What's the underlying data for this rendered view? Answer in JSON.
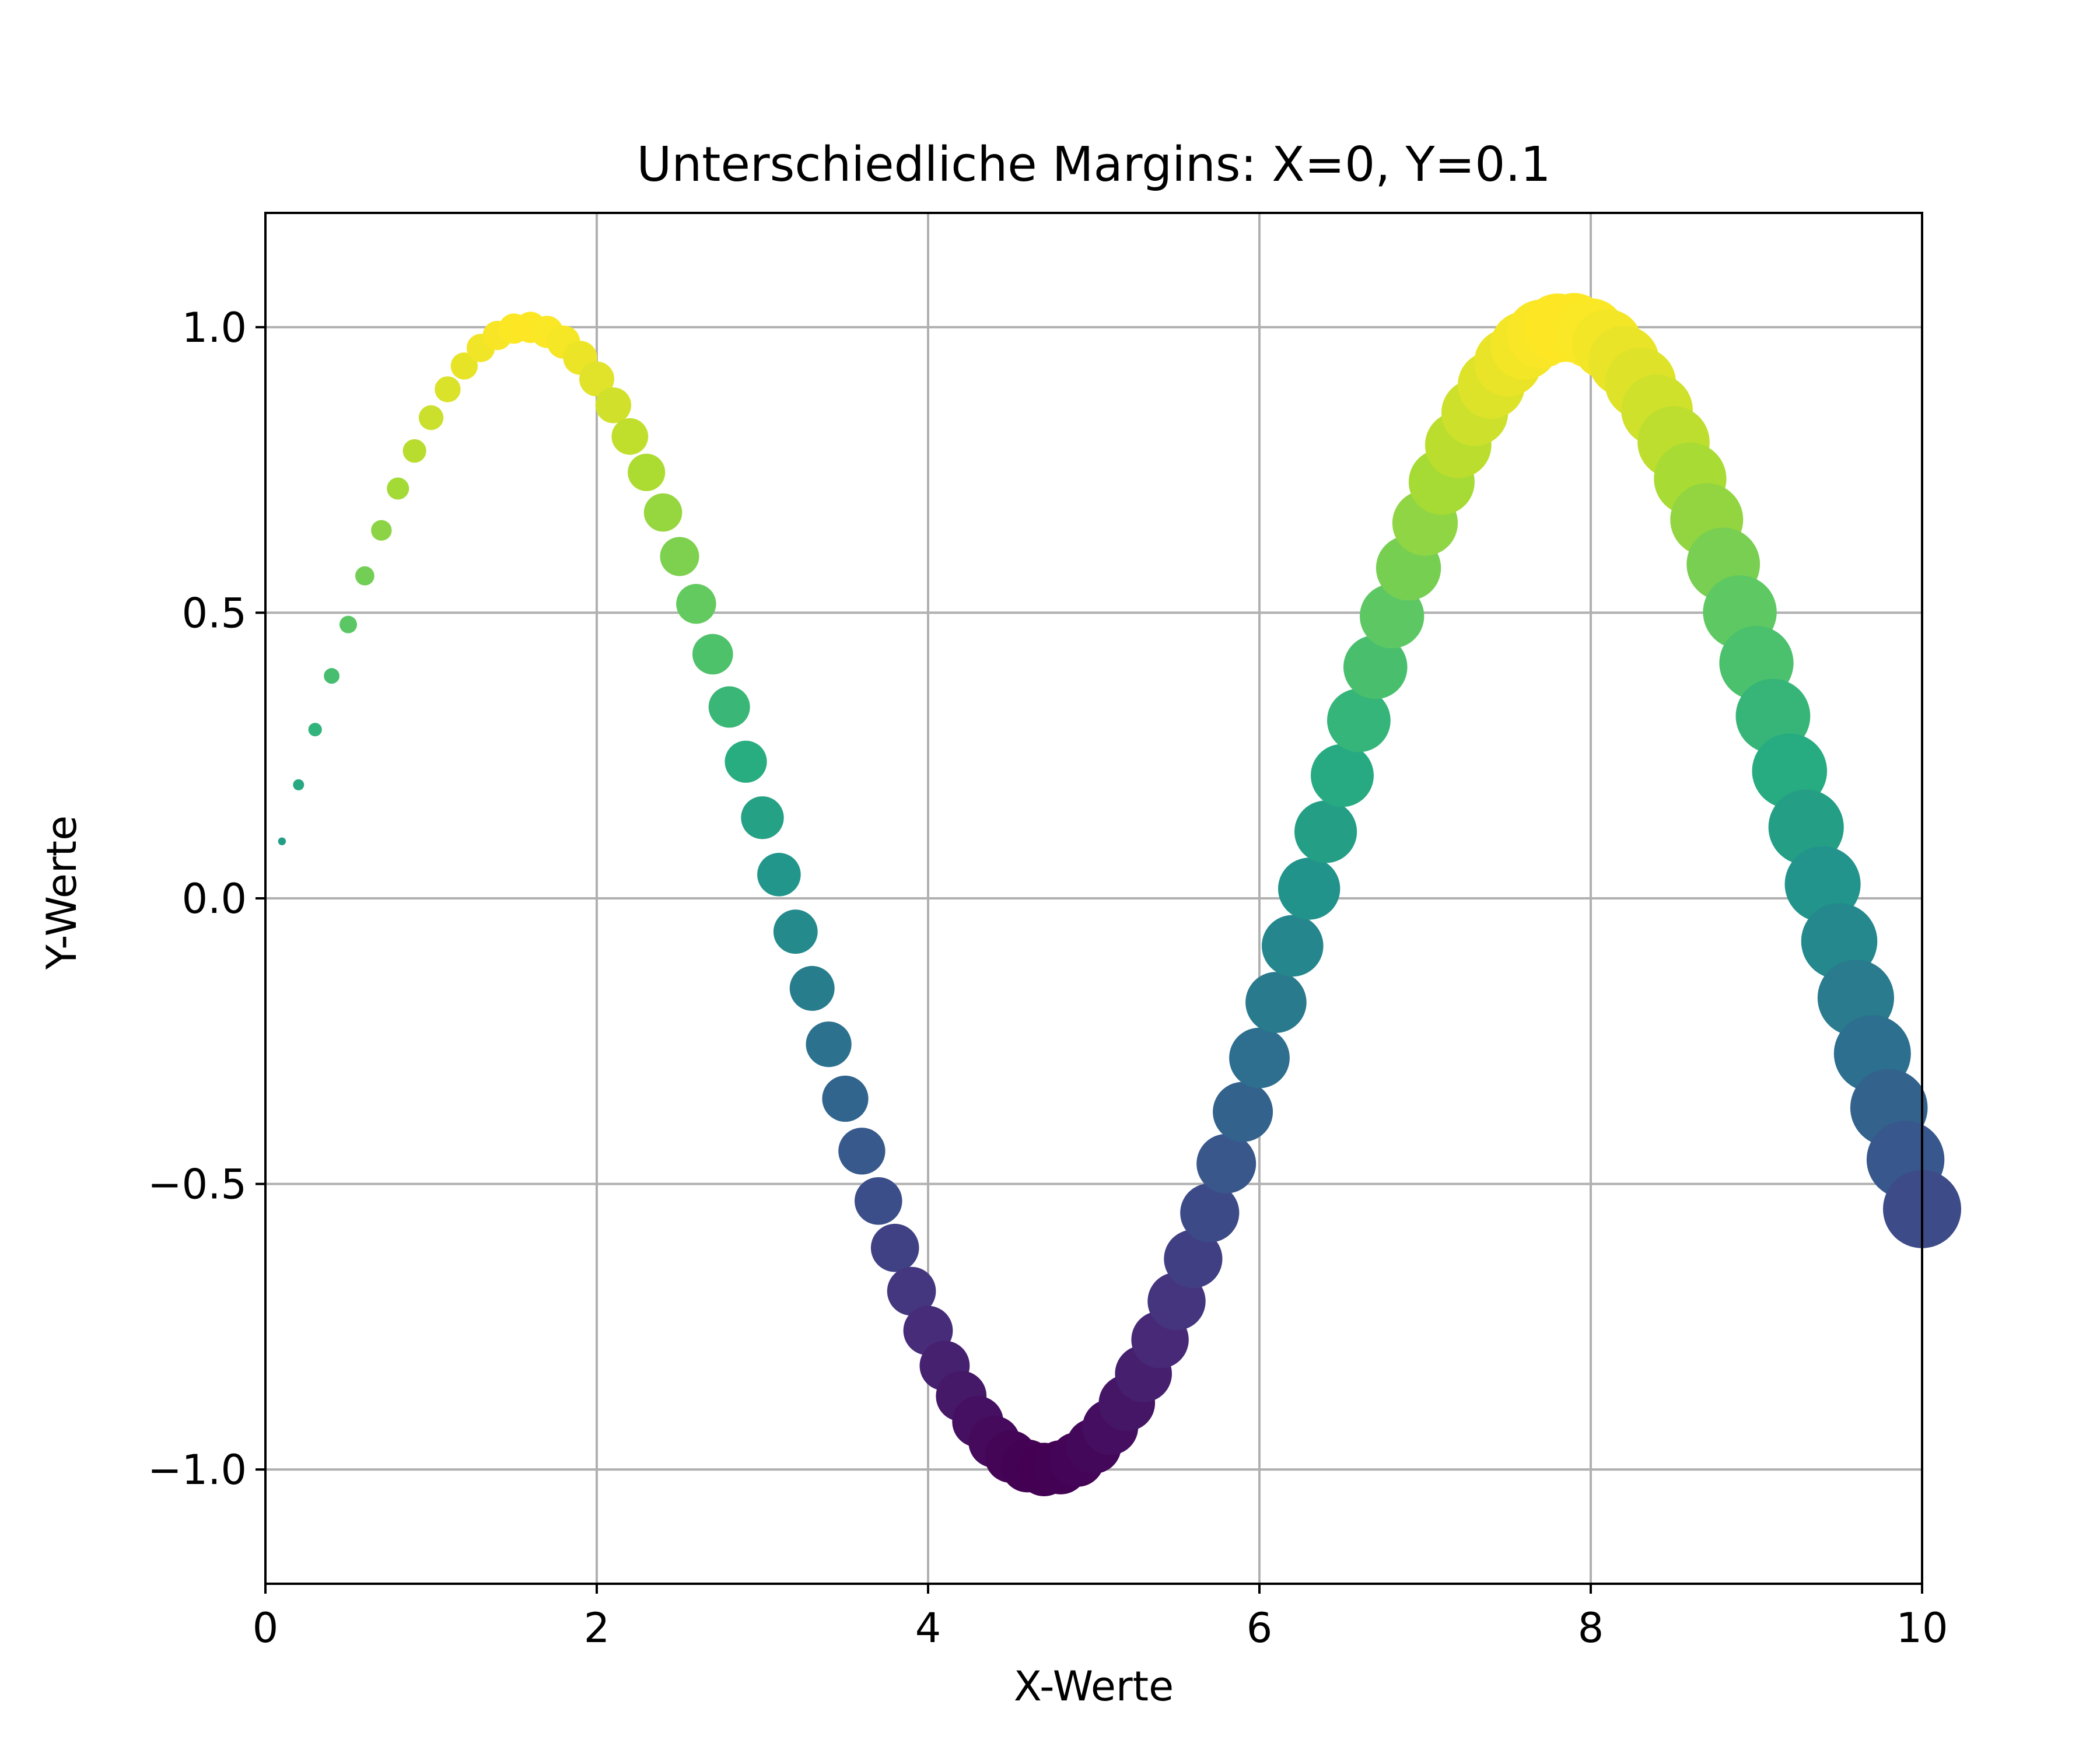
{
  "chart_data": {
    "type": "scatter",
    "title": "Unterschiedliche Margins: X=0, Y=0.1",
    "xlabel": "X-Werte",
    "ylabel": "Y-Werte",
    "xlim": [
      0,
      10
    ],
    "ylim": [
      -1.2,
      1.2
    ],
    "grid": true,
    "colormap": "viridis",
    "color_encoding": "y value",
    "size_encoding": "x value",
    "x_ticks": [
      0,
      2,
      4,
      6,
      8,
      10
    ],
    "x_tick_labels": [
      "0",
      "2",
      "4",
      "6",
      "8",
      "10"
    ],
    "y_ticks": [
      -1.0,
      -0.5,
      0.0,
      0.5,
      1.0
    ],
    "y_tick_labels": [
      "−1.0",
      "−0.5",
      "0.0",
      "0.5",
      "1.0"
    ],
    "series": [
      {
        "x": [
          0.1,
          0.2,
          0.3,
          0.4,
          0.5,
          0.6,
          0.7,
          0.8,
          0.9,
          1.0,
          1.1,
          1.2,
          1.3,
          1.4,
          1.5,
          1.6,
          1.7,
          1.8,
          1.9,
          2.0,
          2.1,
          2.2,
          2.3,
          2.4,
          2.5,
          2.6,
          2.7,
          2.8,
          2.9,
          3.0,
          3.1,
          3.2,
          3.3,
          3.4,
          3.5,
          3.6,
          3.7,
          3.8,
          3.9,
          4.0,
          4.1,
          4.2,
          4.3,
          4.4,
          4.5,
          4.6,
          4.7,
          4.8,
          4.9,
          5.0,
          5.1,
          5.2,
          5.3,
          5.4,
          5.5,
          5.6,
          5.7,
          5.8,
          5.9,
          6.0,
          6.1,
          6.2,
          6.3,
          6.4,
          6.5,
          6.6,
          6.7,
          6.8,
          6.9,
          7.0,
          7.1,
          7.2,
          7.3,
          7.4,
          7.5,
          7.6,
          7.7,
          7.8,
          7.9,
          8.0,
          8.1,
          8.2,
          8.3,
          8.4,
          8.5,
          8.6,
          8.7,
          8.8,
          8.9,
          9.0,
          9.1,
          9.2,
          9.3,
          9.4,
          9.5,
          9.6,
          9.7,
          9.8,
          9.9,
          10.0
        ],
        "y": [
          0.0998,
          0.1987,
          0.2955,
          0.3894,
          0.4794,
          0.5646,
          0.6442,
          0.7174,
          0.7833,
          0.8415,
          0.8912,
          0.932,
          0.9636,
          0.9854,
          0.9975,
          0.9996,
          0.9917,
          0.9738,
          0.9463,
          0.9093,
          0.8632,
          0.8085,
          0.7457,
          0.6755,
          0.5985,
          0.5155,
          0.4274,
          0.335,
          0.2392,
          0.1411,
          0.0416,
          -0.0584,
          -0.1577,
          -0.2555,
          -0.3508,
          -0.4425,
          -0.5298,
          -0.6119,
          -0.6878,
          -0.7568,
          -0.8183,
          -0.8716,
          -0.9162,
          -0.9516,
          -0.9775,
          -0.9937,
          -0.9999,
          -0.9962,
          -0.9825,
          -0.9589,
          -0.9258,
          -0.8835,
          -0.8323,
          -0.7728,
          -0.7055,
          -0.6313,
          -0.5507,
          -0.4646,
          -0.3739,
          -0.2794,
          -0.1822,
          -0.0831,
          0.0168,
          0.1165,
          0.2151,
          0.3115,
          0.4048,
          0.4941,
          0.5784,
          0.657,
          0.729,
          0.7937,
          0.8504,
          0.8987,
          0.938,
          0.9679,
          0.9882,
          0.9985,
          0.9989,
          0.9894,
          0.9699,
          0.9407,
          0.9022,
          0.8546,
          0.7985,
          0.7344,
          0.663,
          0.585,
          0.501,
          0.4121,
          0.319,
          0.2229,
          0.1245,
          0.0248,
          -0.0752,
          -0.1743,
          -0.2718,
          -0.3665,
          -0.4575,
          -0.544
        ]
      }
    ]
  }
}
